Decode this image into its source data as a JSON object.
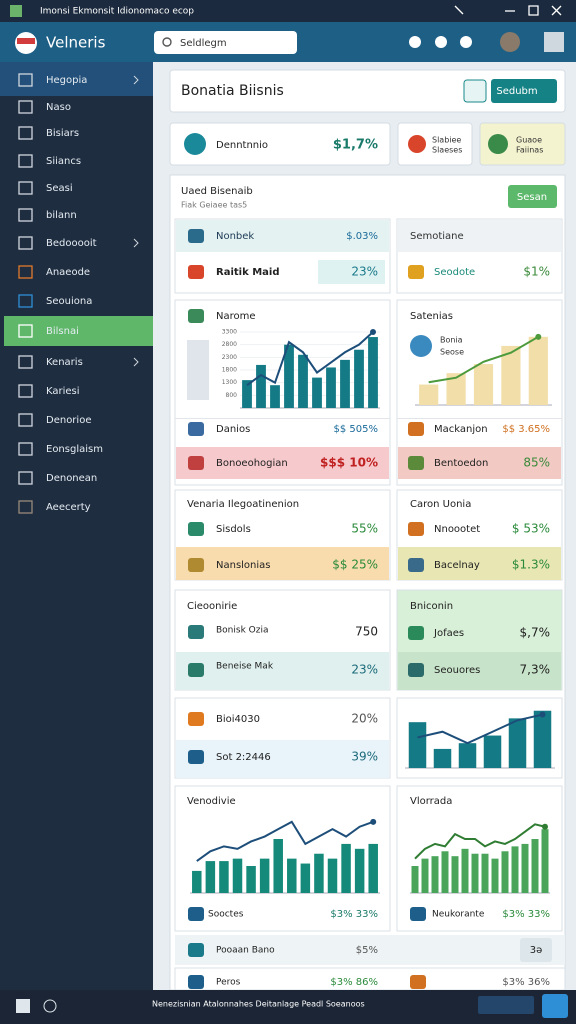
{
  "window_title": "Imonsi Ekmonsit Idionomaco ecop",
  "brand": "Velneris",
  "search_placeholder": "Seldlegm",
  "sidebar": [
    "Hegopia",
    "Naso",
    "Bisiars",
    "Siiancs",
    "Seasi",
    "bilann",
    "Bedooooit",
    "Anaeode",
    "Seouiona",
    "Bilsnai",
    "Kenaris",
    "Kariesi",
    "Denorioe",
    "Eonsglaism",
    "Denonean",
    "Aeecerty"
  ],
  "page_title": "Bonatia Biisnis",
  "primary_button": "Sedubm",
  "kpis": [
    {
      "label": "Denntnnio",
      "value": "$1,7%"
    },
    {
      "lines": [
        "Slabiee",
        "Slaeses"
      ]
    },
    {
      "lines": [
        "Guaoe",
        "Faiinas"
      ]
    }
  ],
  "section": {
    "title": "Uaed Bisenaib",
    "subtitle": "Fiak Geiaee tas5",
    "button": "Sesan"
  },
  "cards": [
    {
      "title": "Nonbek",
      "value": "$.03%",
      "rows": [
        {
          "label": "Raitik Maid",
          "value": "23%"
        }
      ]
    },
    {
      "title": "Semotiane",
      "rows": [
        {
          "label": "Seodote",
          "value": "$1%"
        }
      ]
    },
    {
      "title": "Narome",
      "rows": [
        {
          "label": "Danios",
          "value": "$$ 505%"
        },
        {
          "label": "Bonoeohogian",
          "value": "$$$ 10%"
        }
      ]
    },
    {
      "title": "Satenias",
      "legend": [
        "Bonia",
        "Seose"
      ],
      "rows": [
        {
          "label": "Mackanjon",
          "value": "$$ 3.65%"
        },
        {
          "label": "Bentoedon",
          "value": "85%"
        }
      ]
    },
    {
      "title": "Venaria Ilegoatinenion",
      "rows": [
        {
          "label": "Sisdols",
          "value": "55%"
        },
        {
          "label": "Nanslonias",
          "value": "$$ 25%"
        }
      ]
    },
    {
      "title": "Caron Uonia",
      "rows": [
        {
          "label": "Nnoootet",
          "value": "$ 53%"
        },
        {
          "label": "Bacelnay",
          "value": "$1.3%"
        }
      ]
    },
    {
      "title": "Cieoonirie",
      "rows": [
        {
          "label": "Bonisk Ozia",
          "value": "750"
        },
        {
          "label": "Beneise Mak",
          "value": "23%"
        }
      ]
    },
    {
      "title": "Bniconin",
      "rows": [
        {
          "label": "Jofaes",
          "value": "$,7%"
        },
        {
          "label": "Seouores",
          "value": "7,3%"
        }
      ]
    },
    {
      "rows": [
        {
          "label": "Bioi4030",
          "value": "20%"
        },
        {
          "label": "Sot 2:2446",
          "value": "39%"
        }
      ]
    },
    {
      "title": "Venodivie",
      "rows": [
        {
          "label": "Sooctes",
          "value": "$3% 33%"
        }
      ]
    },
    {
      "title": "Vlorrada",
      "rows": [
        {
          "label": "Neukorante",
          "value": "$3% 33%"
        }
      ]
    },
    {
      "rows": [
        {
          "label": "Pooaan Bano",
          "value": "$5%"
        }
      ],
      "button": "3ə"
    },
    {
      "rows": [
        {
          "label": "Peros",
          "value": "$3% 86%"
        },
        {
          "value": "$3% 36%"
        }
      ]
    }
  ],
  "charts": [
    {
      "type": "bar",
      "color": "#137a86",
      "line_color": "#1d4e7a",
      "ylim": [
        300,
        3300
      ],
      "yticks": [
        800,
        1300,
        1800,
        2300,
        2800,
        3300
      ],
      "values": [
        1400,
        2000,
        1200,
        2800,
        2400,
        1500,
        1900,
        2200,
        2600,
        3100
      ],
      "line_values": [
        1200,
        1600,
        1300,
        2900,
        2500,
        1700,
        2100,
        2500,
        2800,
        3300
      ]
    },
    {
      "type": "bar",
      "color": "#f1dea8",
      "line_color": "#4c9a3c",
      "ylim": [
        0,
        3300
      ],
      "values": [
        900,
        1400,
        1800,
        2600,
        3000
      ],
      "line_values": [
        1000,
        1200,
        1900,
        2300,
        3000
      ]
    },
    {
      "type": "bar",
      "color": "#137a86",
      "line_color": "#1d4e7a",
      "ylim": [
        0,
        3300
      ],
      "values": [
        2400,
        1000,
        1300,
        1700,
        2600,
        3000
      ],
      "line_values": [
        1600,
        1900,
        1300,
        1900,
        2500,
        2800
      ]
    },
    {
      "type": "bar",
      "color": "#168a7a",
      "line_color": "#1d4e7a",
      "ylim": [
        0,
        3300
      ],
      "values": [
        900,
        1300,
        1300,
        1400,
        1100,
        1400,
        2200,
        1400,
        1200,
        1600,
        1400,
        2000,
        1800,
        2000
      ],
      "line_values": [
        1300,
        1700,
        1900,
        1800,
        2100,
        2300,
        2600,
        2900,
        2000,
        2300,
        2600,
        2300,
        2700,
        2900
      ]
    },
    {
      "type": "bar",
      "color": "#4aa55a",
      "line_color": "#2f7d32",
      "ylim": [
        0,
        3300
      ],
      "values": [
        1100,
        1400,
        1500,
        1700,
        1500,
        1800,
        1600,
        1600,
        1400,
        1700,
        1900,
        2000,
        2200,
        2600
      ],
      "line_values": [
        1400,
        1800,
        2000,
        1900,
        2400,
        2200,
        2200,
        1900,
        2100,
        2000,
        2200,
        2500,
        2800,
        2700
      ]
    }
  ],
  "taskbar_text": "Nenezisnian Atalonnahes Deitanlage Peadl Soeanoos"
}
